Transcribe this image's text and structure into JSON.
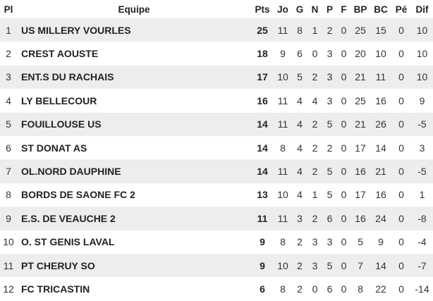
{
  "headers": [
    "Pl",
    "Equipe",
    "Pts",
    "Jo",
    "G",
    "N",
    "P",
    "F",
    "BP",
    "BC",
    "Pé",
    "Dif"
  ],
  "rows": [
    [
      "1",
      "US MILLERY VOURLES",
      "25",
      "11",
      "8",
      "1",
      "2",
      "0",
      "25",
      "15",
      "0",
      "10"
    ],
    [
      "2",
      "CREST AOUSTE",
      "18",
      "9",
      "6",
      "0",
      "3",
      "0",
      "20",
      "10",
      "0",
      "10"
    ],
    [
      "3",
      "ENT.S DU RACHAIS",
      "17",
      "10",
      "5",
      "2",
      "3",
      "0",
      "21",
      "11",
      "0",
      "10"
    ],
    [
      "4",
      "LY BELLECOUR",
      "16",
      "11",
      "4",
      "4",
      "3",
      "0",
      "25",
      "16",
      "0",
      "9"
    ],
    [
      "5",
      "FOUILLOUSE US",
      "14",
      "11",
      "4",
      "2",
      "5",
      "0",
      "21",
      "26",
      "0",
      "-5"
    ],
    [
      "6",
      "ST DONAT AS",
      "14",
      "8",
      "4",
      "2",
      "2",
      "0",
      "17",
      "14",
      "0",
      "3"
    ],
    [
      "7",
      "OL.NORD DAUPHINE",
      "14",
      "11",
      "4",
      "2",
      "5",
      "0",
      "16",
      "21",
      "0",
      "-5"
    ],
    [
      "8",
      "BORDS DE SAONE FC 2",
      "13",
      "10",
      "4",
      "1",
      "5",
      "0",
      "17",
      "16",
      "0",
      "1"
    ],
    [
      "9",
      "E.S. DE VEAUCHE 2",
      "11",
      "11",
      "3",
      "2",
      "6",
      "0",
      "16",
      "24",
      "0",
      "-8"
    ],
    [
      "10",
      "O. ST GENIS LAVAL",
      "9",
      "8",
      "2",
      "3",
      "3",
      "0",
      "5",
      "9",
      "0",
      "-4"
    ],
    [
      "11",
      "PT CHERUY SO",
      "9",
      "10",
      "2",
      "3",
      "5",
      "0",
      "7",
      "14",
      "0",
      "-7"
    ],
    [
      "12",
      "FC TRICASTIN",
      "6",
      "8",
      "2",
      "0",
      "6",
      "0",
      "8",
      "22",
      "0",
      "-14"
    ]
  ]
}
